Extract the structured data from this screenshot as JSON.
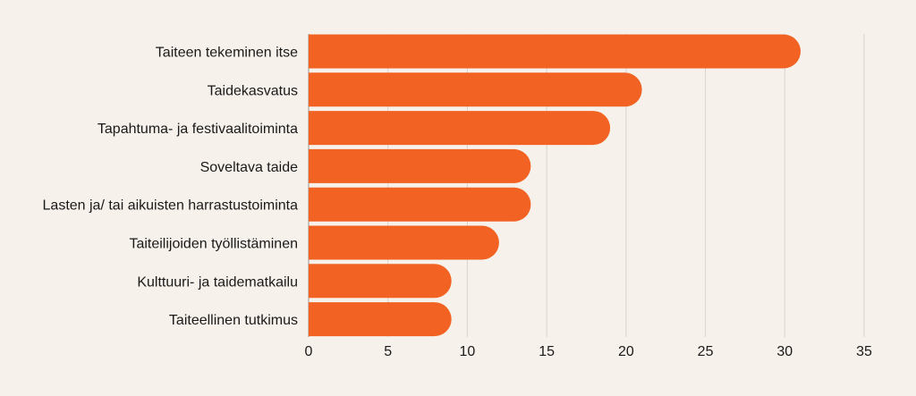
{
  "chart_data": {
    "type": "bar",
    "orientation": "horizontal",
    "categories": [
      "Taiteen tekeminen itse",
      "Taidekasvatus",
      "Tapahtuma- ja festivaalitoiminta",
      "Soveltava taide",
      "Lasten ja/ tai aikuisten harrastustoiminta",
      "Taiteilijoiden työllistäminen",
      "Kulttuuri- ja taidematkailu",
      "Taiteellinen tutkimus"
    ],
    "values": [
      31,
      21,
      19,
      14,
      14,
      12,
      9,
      9
    ],
    "xlim": [
      0,
      35
    ],
    "xticks": [
      "0",
      "5",
      "10",
      "15",
      "20",
      "25",
      "30",
      "35"
    ],
    "grid": true,
    "colors": {
      "bar": "#f26222",
      "grid": "#d9d4cd",
      "axis": "#9a9590"
    }
  }
}
